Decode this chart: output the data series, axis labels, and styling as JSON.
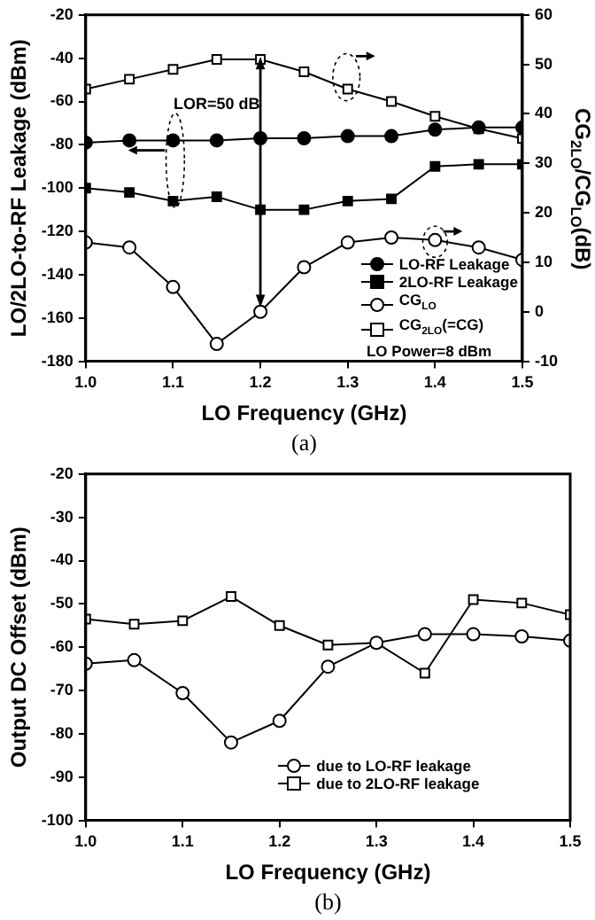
{
  "chart_data": [
    {
      "type": "line",
      "xlabel": "LO Frequency (GHz)",
      "ylabel": "LO/2LO-to-RF Leakage (dBm)",
      "y2label": "CG$_{2LO}$/CG$_{LO}$(dB)",
      "x": [
        1,
        1.05,
        1.1,
        1.15,
        1.2,
        1.25,
        1.3,
        1.35,
        1.4,
        1.45,
        1.5
      ],
      "series": [
        {
          "name": "LO-RF Leakage",
          "color": "#000000",
          "marker": "circle",
          "values": [
            -79,
            -78,
            -78,
            -78,
            -77,
            -77,
            -76,
            -76,
            -73,
            -72,
            -72
          ]
        },
        {
          "name": "2LO-RF Leakage",
          "color": "#000000",
          "marker": "square",
          "values": [
            -100,
            -102,
            -106,
            -104,
            -110,
            -110,
            -106,
            -105,
            -90,
            -89,
            -89
          ]
        },
        {
          "name": "CG$_{LO}$",
          "color": "#000000",
          "marker": "circle-open",
          "axis": "y2",
          "values": [
            14,
            13,
            5,
            -6.5,
            0,
            9,
            14,
            15,
            14.5,
            13,
            10.5
          ]
        },
        {
          "name": "CG$_{2LO}$(=CG)",
          "color": "#000000",
          "marker": "square-open",
          "axis": "y2",
          "values": [
            45,
            47,
            49,
            51,
            51,
            48.5,
            45,
            42.5,
            39.5,
            37,
            35
          ]
        }
      ],
      "xlim": [
        1,
        1.5
      ],
      "xticks": [
        {
          "value": 1,
          "label": "1.0"
        },
        1.1,
        1.2,
        1.3,
        1.4,
        1.5
      ],
      "ylim": [
        -180,
        -20
      ],
      "yticks": [
        -180,
        -160,
        -140,
        -120,
        -100,
        -80,
        -60,
        -40,
        -20
      ],
      "y2lim": [
        -10,
        60
      ],
      "y2ticks": [
        -10,
        0,
        10,
        20,
        30,
        40,
        50,
        60
      ],
      "legend": "bottom right",
      "annotations": [
        "LOR=50 dB",
        "LO Power=8 dBm",
        "(a)"
      ]
    },
    {
      "type": "line",
      "xlabel": "LO Frequency (GHz)",
      "ylabel": "Output DC Offset (dBm)",
      "x": [
        1,
        1.05,
        1.1,
        1.15,
        1.2,
        1.25,
        1.3,
        1.35,
        1.4,
        1.45,
        1.5
      ],
      "series": [
        {
          "name": "due to LO-RF leakage",
          "color": "#000000",
          "marker": "circle-open",
          "values": [
            -63.8,
            -63,
            -70.6,
            -82,
            -77,
            -64.5,
            -59,
            -57,
            -57,
            -57.5,
            -58.5
          ]
        },
        {
          "name": "due to 2LO-RF leakage",
          "color": "#000000",
          "marker": "square-open",
          "values": [
            -53.5,
            -54.7,
            -53.9,
            -48.3,
            -55,
            -59.5,
            -59,
            -66,
            -49,
            -49.8,
            -52.5
          ]
        }
      ],
      "xlim": [
        1,
        1.5
      ],
      "xticks": [
        {
          "value": 1,
          "label": "1.0"
        },
        1.1,
        1.2,
        1.3,
        1.4,
        1.5
      ],
      "ylim": [
        -100,
        -20
      ],
      "yticks": [
        -100,
        -90,
        -80,
        -70,
        -60,
        -50,
        -40,
        -30,
        -20
      ],
      "legend": "bottom",
      "annotations": [
        "(b)"
      ]
    }
  ]
}
